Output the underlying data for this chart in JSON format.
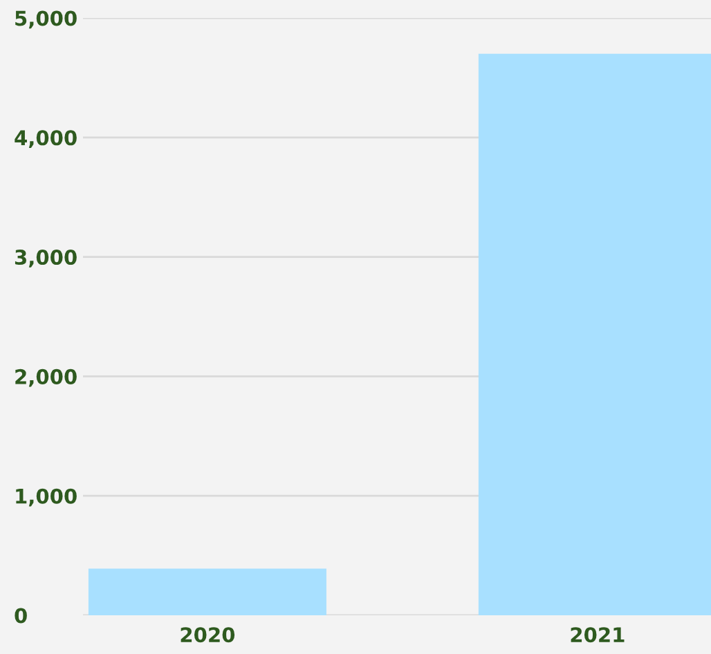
{
  "chart_data": {
    "type": "bar",
    "categories": [
      "2020",
      "2021"
    ],
    "values": [
      390,
      4700
    ],
    "color": "#a8e0ff",
    "ylim": [
      0,
      5000
    ],
    "yticks": [
      {
        "value": 0,
        "label": "0"
      },
      {
        "value": 1000,
        "label": "1,000"
      },
      {
        "value": 2000,
        "label": "2,000"
      },
      {
        "value": 3000,
        "label": "3,000"
      },
      {
        "value": 4000,
        "label": "4,000"
      },
      {
        "value": 5000,
        "label": "5,000"
      }
    ],
    "grid": "y"
  }
}
